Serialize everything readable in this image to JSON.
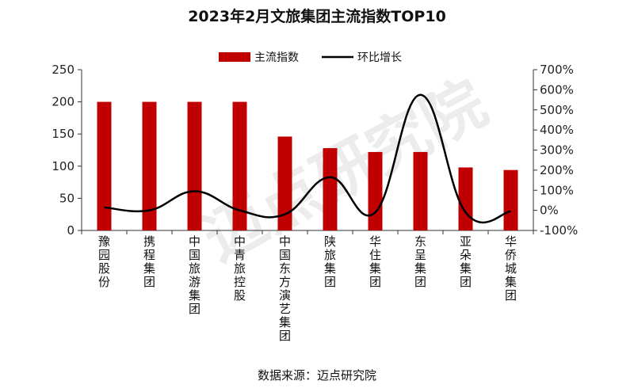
{
  "chart_data": {
    "type": "bar",
    "title": "2023年2月文旅集团主流指数TOP10",
    "categories": [
      "豫园股份",
      "携程集团",
      "中国旅游集团",
      "中青旅控股",
      "中国东方演艺集团",
      "陕旅集团",
      "华住集团",
      "东呈集团",
      "亚朵集团",
      "华侨城集团"
    ],
    "series": [
      {
        "name": "主流指数",
        "axis": "left",
        "type": "bar",
        "color": "#c00000",
        "values": [
          200,
          200,
          200,
          200,
          146,
          128,
          122,
          122,
          98,
          94
        ]
      },
      {
        "name": "环比增长",
        "axis": "right",
        "type": "line",
        "color": "#000000",
        "unit": "%",
        "values": [
          15,
          0,
          95,
          0,
          -20,
          165,
          -10,
          575,
          -10,
          -5
        ]
      }
    ],
    "ylim": [
      0,
      250
    ],
    "yticks": [
      "0",
      "50",
      "100",
      "150",
      "200",
      "250"
    ],
    "y2lim": [
      -100,
      700
    ],
    "y2ticks": [
      "-100%",
      "0%",
      "100%",
      "200%",
      "300%",
      "400%",
      "500%",
      "600%",
      "700%"
    ],
    "grid": false,
    "legend_position": "top-center"
  },
  "source_text": "数据来源：迈点研究院",
  "watermark": {
    "text": "迈点研究院"
  }
}
